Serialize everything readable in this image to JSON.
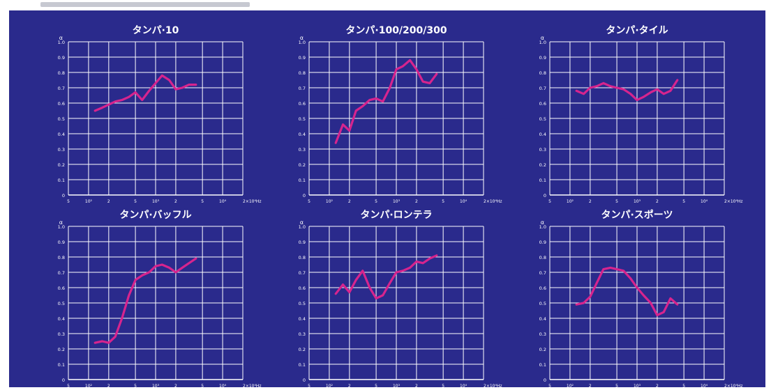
{
  "header": {
    "text": ""
  },
  "colors": {
    "panel": "#2a2a8c",
    "grid": "#ffffff",
    "line": "#d6248e",
    "text": "#ffffff"
  },
  "x_tick_labels": [
    "5",
    "10²",
    "2",
    "5",
    "10³",
    "2",
    "5",
    "10⁴",
    "2×10⁴Hz"
  ],
  "y_tick_labels": [
    "0",
    "0.1",
    "0.2",
    "0.3",
    "0.4",
    "0.5",
    "0.6",
    "0.7",
    "0.8",
    "0.9",
    "1.0"
  ],
  "y_axis_symbol": "α",
  "chart_data": [
    {
      "type": "line",
      "title": "タンパ·10",
      "xscale": "log",
      "xlim": [
        50,
        20000
      ],
      "ylim": [
        0,
        1.0
      ],
      "x": [
        125,
        160,
        200,
        250,
        315,
        400,
        500,
        630,
        800,
        1000,
        1250,
        1600,
        2000,
        2500,
        3150,
        4000
      ],
      "y": [
        0.55,
        0.57,
        0.59,
        0.61,
        0.62,
        0.64,
        0.67,
        0.62,
        0.68,
        0.73,
        0.78,
        0.75,
        0.69,
        0.7,
        0.72,
        0.72
      ]
    },
    {
      "type": "line",
      "title": "タンパ·100/200/300",
      "xscale": "log",
      "xlim": [
        50,
        20000
      ],
      "ylim": [
        0,
        1.0
      ],
      "x": [
        125,
        160,
        200,
        250,
        315,
        400,
        500,
        630,
        800,
        1000,
        1250,
        1600,
        2000,
        2500,
        3150,
        4000
      ],
      "y": [
        0.34,
        0.46,
        0.42,
        0.55,
        0.58,
        0.62,
        0.63,
        0.61,
        0.7,
        0.82,
        0.84,
        0.88,
        0.82,
        0.74,
        0.73,
        0.79
      ]
    },
    {
      "type": "line",
      "title": "タンパ·タイル",
      "xscale": "log",
      "xlim": [
        50,
        20000
      ],
      "ylim": [
        0,
        1.0
      ],
      "x": [
        125,
        160,
        200,
        250,
        315,
        400,
        500,
        630,
        800,
        1000,
        1250,
        1600,
        2000,
        2500,
        3150,
        4000
      ],
      "y": [
        0.68,
        0.66,
        0.7,
        0.71,
        0.73,
        0.71,
        0.7,
        0.69,
        0.66,
        0.62,
        0.64,
        0.67,
        0.69,
        0.66,
        0.68,
        0.75
      ]
    },
    {
      "type": "line",
      "title": "タンパ·バッフル",
      "xscale": "log",
      "xlim": [
        50,
        20000
      ],
      "ylim": [
        0,
        1.0
      ],
      "x": [
        125,
        160,
        200,
        250,
        315,
        400,
        500,
        630,
        800,
        1000,
        1250,
        1600,
        2000,
        2500,
        3150,
        4000
      ],
      "y": [
        0.24,
        0.25,
        0.24,
        0.28,
        0.4,
        0.55,
        0.65,
        0.68,
        0.7,
        0.74,
        0.75,
        0.73,
        0.7,
        0.73,
        0.76,
        0.79
      ]
    },
    {
      "type": "line",
      "title": "タンパ·ロンテラ",
      "xscale": "log",
      "xlim": [
        50,
        20000
      ],
      "ylim": [
        0,
        1.0
      ],
      "x": [
        125,
        160,
        200,
        250,
        315,
        400,
        500,
        630,
        800,
        1000,
        1250,
        1600,
        2000,
        2500,
        3150,
        4000
      ],
      "y": [
        0.56,
        0.62,
        0.57,
        0.65,
        0.71,
        0.6,
        0.53,
        0.55,
        0.63,
        0.7,
        0.71,
        0.73,
        0.77,
        0.76,
        0.79,
        0.81
      ]
    },
    {
      "type": "line",
      "title": "タンパ·スポーツ",
      "xscale": "log",
      "xlim": [
        50,
        20000
      ],
      "ylim": [
        0,
        1.0
      ],
      "x": [
        125,
        160,
        200,
        250,
        315,
        400,
        500,
        630,
        800,
        1000,
        1250,
        1600,
        2000,
        2500,
        3150,
        4000
      ],
      "y": [
        0.49,
        0.5,
        0.54,
        0.63,
        0.72,
        0.73,
        0.72,
        0.71,
        0.66,
        0.6,
        0.55,
        0.5,
        0.42,
        0.44,
        0.53,
        0.49
      ]
    }
  ]
}
